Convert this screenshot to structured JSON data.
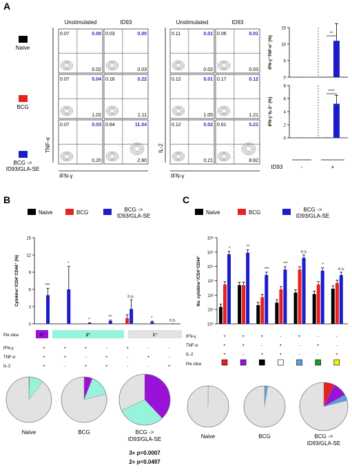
{
  "colors": {
    "naive": "#000000",
    "bcg": "#e8201f",
    "boost": "#1c1cc9",
    "teal": "#98f3dc",
    "purple": "#9a12d8",
    "grey": "#e2e2e2",
    "yellow": "#f4f00b",
    "green": "#1d9b2f",
    "skyblue": "#5b9ee0"
  },
  "panelA": {
    "label": "A",
    "legend": [
      "Naive",
      "BCG",
      "BCG ->\nID93/GLA-SE"
    ],
    "colHeaders": [
      "Unstimulated",
      "ID93",
      "Unstimulated",
      "ID93"
    ],
    "xaxis": "IFN-γ",
    "yaxisLeft": "TNF-α",
    "yaxisRight": "IL-2",
    "quads": [
      [
        [
          "0.07",
          "0.00",
          "",
          "0.02"
        ],
        [
          "0.03",
          "0.00",
          "",
          "0.03"
        ],
        [
          "0.11",
          "0.01",
          "",
          "0.02"
        ],
        [
          "0.06",
          "0.01",
          "",
          "0.03"
        ]
      ],
      [
        [
          "0.07",
          "0.04",
          "",
          "1.02"
        ],
        [
          "0.16",
          "0.22",
          "",
          "1.11"
        ],
        [
          "0.12",
          "0.01",
          "",
          "1.05"
        ],
        [
          "0.17",
          "0.12",
          "",
          "1.21"
        ]
      ],
      [
        [
          "0.07",
          "0.03",
          "0.20",
          "2.80"
        ],
        [
          "0.84",
          "11.04",
          "",
          ""
        ],
        [
          "0.12",
          "0.02",
          "0.21",
          "8.62"
        ],
        [
          "0.61",
          "5.21",
          "",
          ""
        ]
      ]
    ],
    "quadsBR": [
      [
        "0.02",
        "0.03",
        "0.02",
        "0.03"
      ],
      [
        "1.02",
        "1.11",
        "1.05",
        "1.21"
      ],
      [
        "0.20",
        "2.80",
        "0.21",
        "8.62"
      ]
    ],
    "barTop": {
      "ylabel": "IFN-γ⁺TNF-α⁺ (%)",
      "ticks": [
        "0",
        "5",
        "10",
        "15"
      ],
      "ylim": [
        0,
        15
      ],
      "values": [
        0.02,
        0.02,
        0.05,
        11
      ],
      "err": [
        0,
        0,
        0,
        5.2
      ],
      "sig": "**"
    },
    "barBot": {
      "ylabel": "IFN-γ⁺IL-2⁺ (%)",
      "ticks": [
        "0",
        "2",
        "4",
        "6",
        "8"
      ],
      "ylim": [
        0,
        8
      ],
      "values": [
        0.01,
        0.01,
        0.05,
        5.2
      ],
      "err": [
        0,
        0,
        0,
        1.3
      ],
      "sig": "****"
    },
    "id93Label": "ID93",
    "minus": "-",
    "plus": "+"
  },
  "panelB": {
    "label": "B",
    "legend": [
      "Naive",
      "BCG",
      "BCG ->\nID93/GLA-SE"
    ],
    "ylabel": "Cytokine⁺/CD4⁺CD44⁺ (%)",
    "ticks": [
      "0",
      "3",
      "6",
      "9",
      "12",
      "15"
    ],
    "ylim": [
      0,
      15
    ],
    "groups": [
      {
        "values": [
          0.02,
          0.03,
          5.0
        ],
        "err": [
          0,
          0,
          1.2
        ],
        "sig": "***"
      },
      {
        "values": [
          0.02,
          0.04,
          6.0
        ],
        "err": [
          0,
          0,
          4.0
        ],
        "sig": "*"
      },
      {
        "values": [
          0.01,
          0.02,
          0.15
        ],
        "err": [
          0,
          0,
          0.05
        ],
        "sig": "*"
      },
      {
        "values": [
          0.02,
          0.03,
          0.5
        ],
        "err": [
          0,
          0,
          0.15
        ],
        "sig": "**"
      },
      {
        "values": [
          0.02,
          1.0,
          2.6
        ],
        "err": [
          0,
          0.6,
          1.6
        ],
        "sig": "n.s."
      },
      {
        "values": [
          0.02,
          0.05,
          0.35
        ],
        "err": [
          0,
          0,
          0.12
        ],
        "sig": "*"
      },
      {
        "values": [
          0.02,
          0.05,
          0.08
        ],
        "err": [
          0,
          0,
          0
        ],
        "sig": "n.s."
      }
    ],
    "pieSliceLabel": "Pie slice",
    "pieCats": [
      "3⁺",
      "2⁺",
      "1⁺"
    ],
    "rowLabels": [
      "IFN-γ",
      "TNF-α",
      "IL-2"
    ],
    "rows": [
      [
        "+",
        "+",
        "+",
        "-",
        "+",
        "-",
        "-"
      ],
      [
        "+",
        "+",
        "-",
        "+",
        "-",
        "+",
        "-"
      ],
      [
        "+",
        "-",
        "+",
        "+",
        "-",
        "-",
        "+"
      ]
    ],
    "pies": [
      {
        "label": "Naive",
        "slices": [
          0.005,
          0.1,
          0.895
        ]
      },
      {
        "label": "BCG",
        "slices": [
          0.06,
          0.15,
          0.79
        ]
      },
      {
        "label": "BCG ->\nID93/GLA-SE",
        "slices": [
          0.38,
          0.3,
          0.32
        ]
      }
    ],
    "pvals": [
      "3+ p=0.0007",
      "2+ p=0.0497"
    ]
  },
  "panelC": {
    "label": "C",
    "legend": [
      "Naive",
      "BCG",
      "BCG ->\nID93/GLA-SE"
    ],
    "ylabel": "No. cytokine⁺/CD4⁺CD44⁺",
    "ticks": [
      "10⁰",
      "10¹",
      "10²",
      "10³",
      "10⁴",
      "10⁵",
      "10⁶"
    ],
    "groups": [
      {
        "values": [
          15,
          550,
          70000
        ],
        "sig": "*"
      },
      {
        "values": [
          500,
          500,
          90000
        ],
        "sig": "**"
      },
      {
        "values": [
          20,
          70,
          2500
        ],
        "sig": "***"
      },
      {
        "values": [
          30,
          250,
          6000
        ],
        "sig": "***"
      },
      {
        "values": [
          150,
          6000,
          40000
        ],
        "sig": "n.s."
      },
      {
        "values": [
          120,
          550,
          5000
        ],
        "sig": "*"
      },
      {
        "values": [
          280,
          700,
          2500
        ],
        "sig": "n.s."
      }
    ],
    "pieSliceLabel": "Pie slice",
    "rowLabels": [
      "IFN-γ",
      "TNF-α",
      "IL-2"
    ],
    "rows": [
      [
        "+",
        "+",
        "+",
        "-",
        "+",
        "-",
        "-"
      ],
      [
        "+",
        "+",
        "-",
        "+",
        "-",
        "+",
        "-"
      ],
      [
        "+",
        "-",
        "+",
        "+",
        "-",
        "-",
        "+"
      ]
    ],
    "pies": [
      {
        "label": "Naive",
        "slices": [
          0.002,
          0.998
        ]
      },
      {
        "label": "BCG",
        "slices": [
          0.025,
          0.975
        ]
      },
      {
        "label": "BCG ->\nID93/GLA-SE",
        "slices": [
          0.07,
          0.1,
          0.04,
          0.79
        ]
      }
    ]
  }
}
